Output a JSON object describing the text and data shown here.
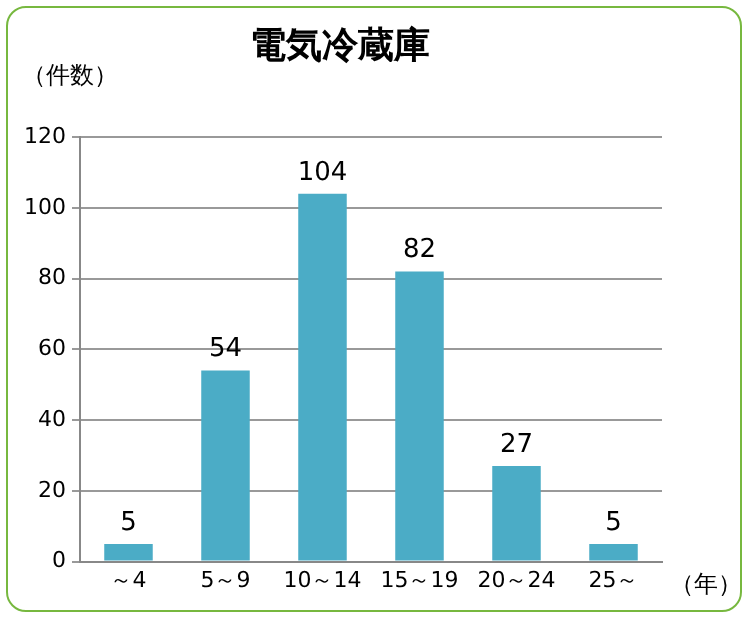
{
  "chart_data": {
    "type": "bar",
    "title": "電気冷蔵庫",
    "ylabel": "（件数）",
    "xlabel": "（年）",
    "categories": [
      "～4",
      "5～9",
      "10～14",
      "15～19",
      "20～24",
      "25～"
    ],
    "values": [
      5,
      54,
      104,
      82,
      27,
      5
    ],
    "color": "#4bacc6",
    "ylim": [
      0,
      120
    ],
    "yticks": [
      0,
      20,
      40,
      60,
      80,
      100,
      120
    ],
    "grid": "y",
    "legend": false,
    "data_labels": true
  }
}
